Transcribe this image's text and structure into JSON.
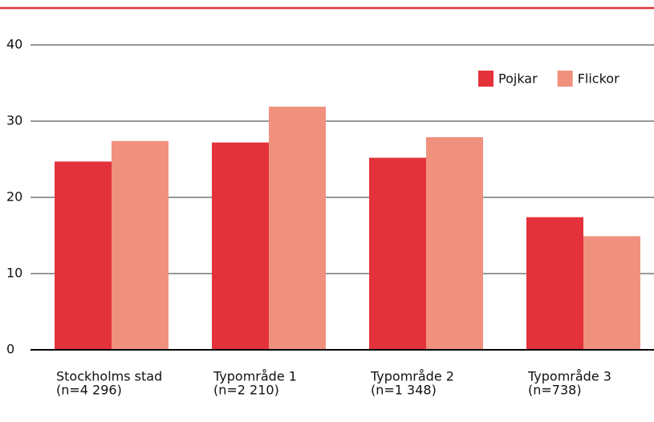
{
  "chart_data": {
    "type": "bar",
    "categories": [
      [
        "Stockholms stad",
        "(n=4 296)"
      ],
      [
        "Typområde 1",
        "(n=2 210)"
      ],
      [
        "Typområde 2",
        "(n=1 348)"
      ],
      [
        "Typområde 3",
        "(n=738)"
      ]
    ],
    "series": [
      {
        "name": "Pojkar",
        "color": "#e3323b",
        "values": [
          24.7,
          27.2,
          25.2,
          17.4
        ]
      },
      {
        "name": "Flickor",
        "color": "#f0917d",
        "values": [
          27.4,
          31.9,
          27.9,
          14.9
        ]
      }
    ],
    "ylim": [
      0,
      40
    ],
    "yticks": [
      0,
      10,
      20,
      30,
      40
    ],
    "grid": true,
    "legend": "upper right"
  }
}
